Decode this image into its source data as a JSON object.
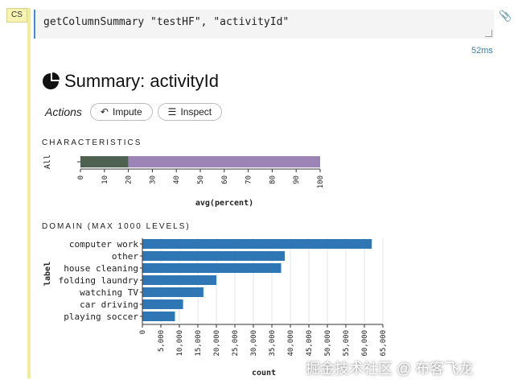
{
  "cell": {
    "tag": "CS",
    "code": "getColumnSummary \"testHF\", \"activityId\"",
    "timing": "52ms"
  },
  "summary": {
    "title": "Summary: activityId",
    "actions_label": "Actions",
    "impute_label": "Impute",
    "inspect_label": "Inspect"
  },
  "characteristics": {
    "heading": "CHARACTERISTICS",
    "chart_data": {
      "type": "bar",
      "orientation": "horizontal-stacked",
      "categories": [
        "All"
      ],
      "series": [
        {
          "values": [
            20
          ],
          "color": "#4f6150"
        },
        {
          "values": [
            80
          ],
          "color": "#9d84b7"
        }
      ],
      "xlabel": "avg(percent)",
      "ylabel": "",
      "xlim": [
        0,
        100
      ],
      "xticks": [
        "0",
        "10",
        "20",
        "30",
        "40",
        "50",
        "60",
        "70",
        "80",
        "90",
        "100"
      ]
    }
  },
  "domain": {
    "heading": "DOMAIN (MAX 1000 LEVELS)",
    "chart_data": {
      "type": "bar",
      "orientation": "horizontal",
      "categories": [
        "computer work",
        "other",
        "house cleaning",
        "folding laundry",
        "watching TV",
        "car driving",
        "playing soccer"
      ],
      "values": [
        62000,
        38500,
        37500,
        20000,
        16500,
        11000,
        8800
      ],
      "color": "#2f77b4",
      "xlabel": "count",
      "ylabel": "label",
      "xlim": [
        0,
        65000
      ],
      "xticks": [
        "0",
        "5,000",
        "10,000",
        "15,000",
        "20,000",
        "25,000",
        "30,000",
        "35,000",
        "40,000",
        "45,000",
        "50,000",
        "55,000",
        "60,000",
        "65,000"
      ]
    }
  },
  "watermark": "掘金技术社区 @ 布客飞龙"
}
